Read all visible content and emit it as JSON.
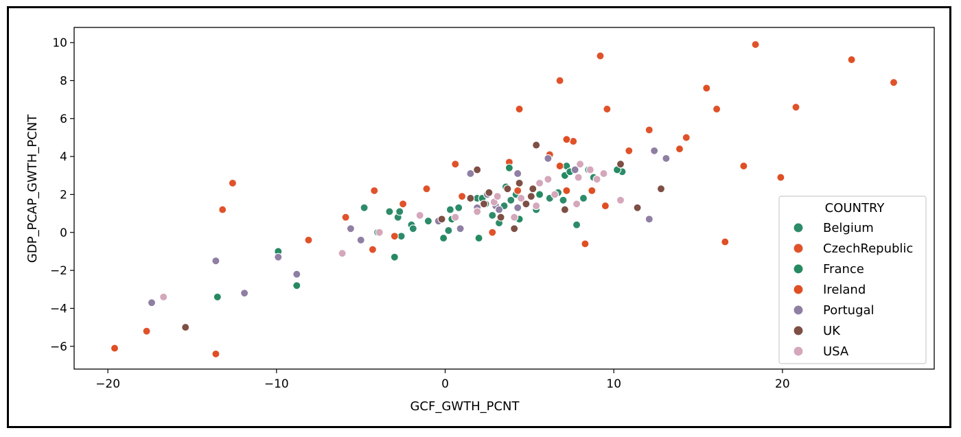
{
  "chart_data": {
    "type": "scatter",
    "xlabel": "GCF_GWTH_PCNT",
    "ylabel": "GDP_PCAP_GWTH_PCNT",
    "xlim": [
      -22,
      29
    ],
    "ylim": [
      -7.2,
      10.8
    ],
    "xticks": [
      -20,
      -10,
      0,
      10,
      20
    ],
    "xtick_labels": [
      "−20",
      "−10",
      "0",
      "10",
      "20"
    ],
    "yticks": [
      -6,
      -4,
      -2,
      0,
      2,
      4,
      6,
      8,
      10
    ],
    "ytick_labels": [
      "−6",
      "−4",
      "−2",
      "0",
      "2",
      "4",
      "6",
      "8",
      "10"
    ],
    "grid": false,
    "legend": {
      "title": "COUNTRY",
      "placement": "lower-right"
    },
    "series": [
      {
        "name": "Belgium",
        "color": "#2e8b6a",
        "points": [
          [
            -4.8,
            1.3
          ],
          [
            -3.9,
            0.0
          ],
          [
            -3.3,
            1.1
          ],
          [
            -2.8,
            0.8
          ],
          [
            -2.7,
            1.1
          ],
          [
            -2.6,
            -0.2
          ],
          [
            -2.0,
            0.4
          ],
          [
            -1.9,
            0.2
          ],
          [
            -1.0,
            0.6
          ],
          [
            0.2,
            0.1
          ],
          [
            0.3,
            1.2
          ],
          [
            0.8,
            1.3
          ],
          [
            1.9,
            1.8
          ],
          [
            2.4,
            1.5
          ],
          [
            2.8,
            0.9
          ],
          [
            3.2,
            0.5
          ],
          [
            3.5,
            1.4
          ],
          [
            3.9,
            1.7
          ],
          [
            4.2,
            2.0
          ],
          [
            5.4,
            1.2
          ],
          [
            6.2,
            1.8
          ],
          [
            6.7,
            2.1
          ],
          [
            7.0,
            1.7
          ],
          [
            7.2,
            3.5
          ],
          [
            7.8,
            0.4
          ],
          [
            8.2,
            1.8
          ],
          [
            8.8,
            2.9
          ],
          [
            10.5,
            3.2
          ]
        ]
      },
      {
        "name": "CzechRepublic",
        "color": "#e0522a",
        "points": [
          [
            -17.7,
            -5.2
          ],
          [
            -13.2,
            1.2
          ],
          [
            -12.6,
            2.6
          ],
          [
            -8.1,
            -0.4
          ],
          [
            -5.9,
            0.8
          ],
          [
            -4.3,
            -0.9
          ],
          [
            -4.2,
            2.2
          ],
          [
            -3.0,
            -0.2
          ],
          [
            -2.5,
            1.5
          ],
          [
            -1.1,
            2.3
          ],
          [
            0.6,
            3.6
          ],
          [
            1.0,
            1.9
          ],
          [
            2.8,
            0.0
          ],
          [
            3.8,
            3.7
          ],
          [
            4.3,
            2.2
          ],
          [
            6.2,
            4.1
          ],
          [
            6.8,
            8.0
          ],
          [
            7.6,
            4.8
          ],
          [
            9.2,
            9.3
          ],
          [
            9.6,
            6.5
          ],
          [
            10.9,
            4.3
          ],
          [
            12.1,
            5.4
          ],
          [
            14.3,
            5.0
          ],
          [
            16.1,
            6.5
          ],
          [
            18.4,
            9.9
          ],
          [
            20.8,
            6.6
          ],
          [
            26.6,
            7.9
          ]
        ]
      },
      {
        "name": "France",
        "color": "#258a62",
        "points": [
          [
            -13.5,
            -3.4
          ],
          [
            -9.9,
            -1.0
          ],
          [
            -8.8,
            -2.8
          ],
          [
            -4.0,
            0.0
          ],
          [
            -3.0,
            -1.3
          ],
          [
            -0.1,
            -0.3
          ],
          [
            0.4,
            0.7
          ],
          [
            2.0,
            -0.3
          ],
          [
            2.2,
            1.8
          ],
          [
            3.6,
            2.4
          ],
          [
            3.8,
            3.4
          ],
          [
            4.4,
            0.7
          ],
          [
            5.6,
            2.0
          ],
          [
            7.1,
            3.0
          ],
          [
            7.4,
            3.2
          ],
          [
            8.5,
            3.3
          ],
          [
            10.2,
            3.3
          ]
        ]
      },
      {
        "name": "Ireland",
        "color": "#df4f24",
        "points": [
          [
            -19.6,
            -6.1
          ],
          [
            -13.6,
            -6.4
          ],
          [
            4.4,
            6.5
          ],
          [
            6.8,
            3.5
          ],
          [
            7.2,
            4.9
          ],
          [
            7.2,
            2.2
          ],
          [
            8.3,
            -0.6
          ],
          [
            8.7,
            2.2
          ],
          [
            9.5,
            1.4
          ],
          [
            13.9,
            4.4
          ],
          [
            15.5,
            7.6
          ],
          [
            16.6,
            -0.5
          ],
          [
            17.7,
            3.5
          ],
          [
            19.9,
            2.9
          ],
          [
            24.1,
            9.1
          ]
        ]
      },
      {
        "name": "Portugal",
        "color": "#8f7fa3",
        "points": [
          [
            -17.4,
            -3.7
          ],
          [
            -13.6,
            -1.5
          ],
          [
            -11.9,
            -3.2
          ],
          [
            -9.9,
            -1.3
          ],
          [
            -8.8,
            -2.2
          ],
          [
            -5.6,
            0.2
          ],
          [
            -5.0,
            -0.4
          ],
          [
            -0.4,
            0.6
          ],
          [
            0.9,
            0.2
          ],
          [
            1.5,
            3.1
          ],
          [
            1.9,
            1.3
          ],
          [
            2.5,
            2.0
          ],
          [
            3.0,
            1.4
          ],
          [
            3.2,
            1.2
          ],
          [
            4.3,
            3.1
          ],
          [
            4.3,
            1.3
          ],
          [
            6.1,
            3.9
          ],
          [
            7.7,
            3.3
          ],
          [
            12.1,
            0.7
          ],
          [
            12.4,
            4.3
          ],
          [
            13.1,
            3.9
          ]
        ]
      },
      {
        "name": "UK",
        "color": "#7e4f44",
        "points": [
          [
            -15.4,
            -5.0
          ],
          [
            -0.2,
            0.7
          ],
          [
            1.5,
            1.8
          ],
          [
            1.9,
            3.3
          ],
          [
            2.3,
            1.5
          ],
          [
            2.6,
            2.1
          ],
          [
            3.3,
            0.8
          ],
          [
            3.7,
            2.3
          ],
          [
            4.1,
            0.2
          ],
          [
            4.4,
            2.6
          ],
          [
            4.8,
            1.5
          ],
          [
            5.1,
            1.9
          ],
          [
            5.2,
            2.3
          ],
          [
            5.4,
            4.6
          ],
          [
            7.1,
            1.2
          ],
          [
            10.4,
            3.6
          ],
          [
            11.4,
            1.3
          ],
          [
            12.8,
            2.3
          ]
        ]
      },
      {
        "name": "USA",
        "color": "#d4a7bb",
        "points": [
          [
            -16.7,
            -3.4
          ],
          [
            -6.1,
            -1.1
          ],
          [
            -3.9,
            0.0
          ],
          [
            -1.5,
            0.9
          ],
          [
            0.6,
            0.8
          ],
          [
            1.9,
            1.1
          ],
          [
            2.9,
            1.6
          ],
          [
            3.1,
            1.9
          ],
          [
            4.1,
            0.8
          ],
          [
            4.5,
            1.8
          ],
          [
            5.4,
            1.4
          ],
          [
            5.6,
            2.6
          ],
          [
            6.1,
            2.8
          ],
          [
            6.5,
            2.0
          ],
          [
            7.8,
            1.5
          ],
          [
            7.9,
            2.9
          ],
          [
            8.0,
            3.6
          ],
          [
            8.6,
            3.3
          ],
          [
            9.0,
            2.8
          ],
          [
            9.4,
            3.1
          ],
          [
            10.4,
            1.7
          ]
        ]
      }
    ]
  }
}
